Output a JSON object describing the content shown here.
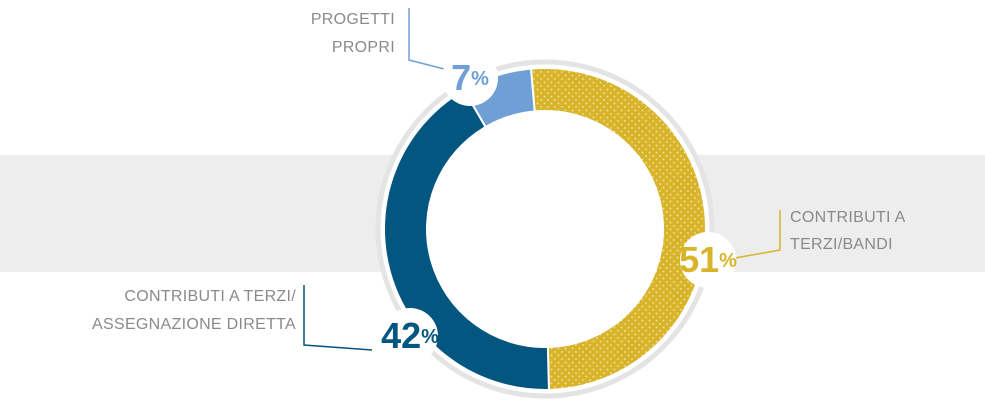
{
  "chart_data": {
    "type": "donut",
    "categories": [
      [
        "CONTRIBUTI A",
        "TERZI/BANDI"
      ],
      [
        "CONTRIBUTI A TERZI/",
        "ASSEGNAZIONE DIRETTA"
      ],
      [
        "PROGETTI",
        "PROPRI"
      ]
    ],
    "values": [
      51,
      42,
      7
    ],
    "value_labels": [
      "51%",
      "42%",
      "7%"
    ],
    "colors": [
      "#d8b42b",
      "#03567f",
      "#709fd5"
    ]
  }
}
